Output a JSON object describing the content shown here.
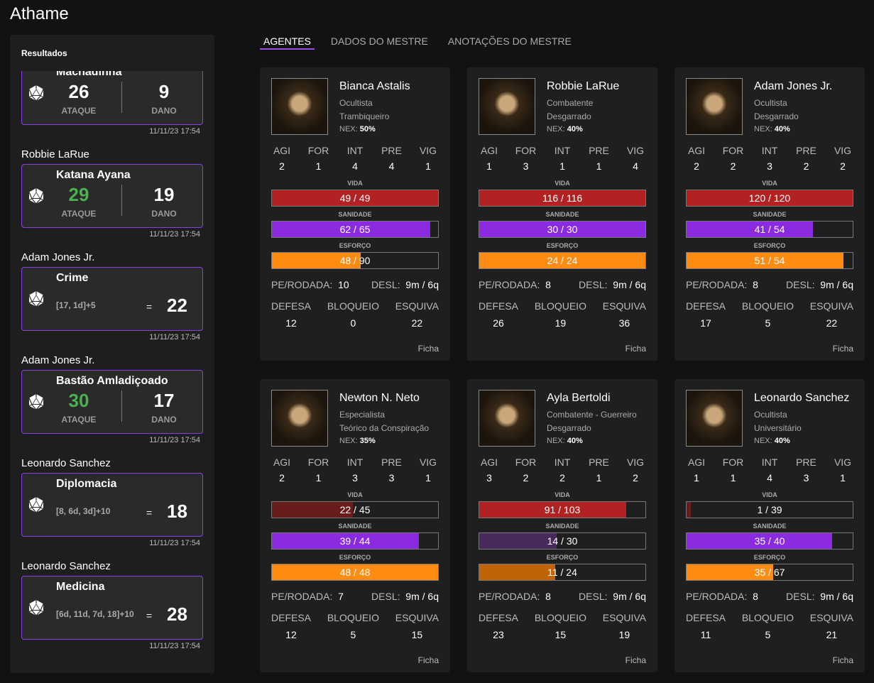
{
  "app": {
    "title": "Athame"
  },
  "sidebar": {
    "title": "Resultados",
    "results": [
      {
        "who": "",
        "type": "attack",
        "name": "Machadinha",
        "attack": "26",
        "attack_label": "ATAQUE",
        "damage": "9",
        "damage_label": "DANO",
        "crit": false,
        "time": "11/11/23 17:54"
      },
      {
        "who": "Robbie LaRue",
        "type": "attack",
        "name": "Katana Ayana",
        "attack": "29",
        "attack_label": "ATAQUE",
        "damage": "19",
        "damage_label": "DANO",
        "crit": true,
        "time": "11/11/23 17:54"
      },
      {
        "who": "Adam Jones Jr.",
        "type": "skill",
        "name": "Crime",
        "formula": "[17, 1d]+5",
        "eq": "=",
        "result": "22",
        "time": "11/11/23 17:54"
      },
      {
        "who": "Adam Jones Jr.",
        "type": "attack",
        "name": "Bastão Amladiçoado",
        "attack": "30",
        "attack_label": "ATAQUE",
        "damage": "17",
        "damage_label": "DANO",
        "crit": true,
        "time": "11/11/23 17:54"
      },
      {
        "who": "Leonardo Sanchez",
        "type": "skill",
        "name": "Diplomacia",
        "formula": "[8, 6d, 3d]+10",
        "eq": "=",
        "result": "18",
        "time": "11/11/23 17:54"
      },
      {
        "who": "Leonardo Sanchez",
        "type": "skill",
        "name": "Medicina",
        "formula": "[6d, 11d, 7d, 18]+10",
        "eq": "=",
        "result": "28",
        "time": "11/11/23 17:54"
      }
    ]
  },
  "tabs": [
    {
      "label": "AGENTES",
      "active": true
    },
    {
      "label": "DADOS DO MESTRE"
    },
    {
      "label": "ANOTAÇÕES DO MESTRE"
    }
  ],
  "labels": {
    "attrs": [
      "AGI",
      "FOR",
      "INT",
      "PRE",
      "VIG"
    ],
    "vida": "VIDA",
    "sanidade": "SANIDADE",
    "esforco": "ESFORÇO",
    "pe": "PE/RODADA:",
    "desl": "DESL:",
    "defesa": "DEFESA",
    "bloqueio": "BLOQUEIO",
    "esquiva": "ESQUIVA",
    "ficha": "Ficha",
    "nex": "NEX:"
  },
  "colors": {
    "vida": "#b22222",
    "vida_low": "#6a1c1c",
    "sanidade": "#8a2be2",
    "sanidade_low": "#48295c",
    "esforco": "#ff8c12",
    "esforco_low": "#c0640a",
    "accent": "#9b4de6",
    "crit": "#4caf50"
  },
  "agents": [
    {
      "name": "Bianca Astalis",
      "class": "Ocultista",
      "origin": "Trambiqueiro",
      "nex": "50%",
      "attrs": [
        2,
        1,
        4,
        4,
        1
      ],
      "vida": [
        49,
        49
      ],
      "sanidade": [
        62,
        65
      ],
      "esforco": [
        48,
        90
      ],
      "pe": "10",
      "desl": "9m / 6q",
      "defesa": "12",
      "bloqueio": "0",
      "esquiva": "22"
    },
    {
      "name": "Robbie LaRue",
      "class": "Combatente",
      "origin": "Desgarrado",
      "nex": "40%",
      "attrs": [
        1,
        3,
        1,
        1,
        4
      ],
      "vida": [
        116,
        116
      ],
      "sanidade": [
        30,
        30
      ],
      "esforco": [
        24,
        24
      ],
      "pe": "8",
      "desl": "9m / 6q",
      "defesa": "26",
      "bloqueio": "19",
      "esquiva": "36"
    },
    {
      "name": "Adam Jones Jr.",
      "class": "Ocultista",
      "origin": "Desgarrado",
      "nex": "40%",
      "attrs": [
        2,
        2,
        3,
        2,
        2
      ],
      "vida": [
        120,
        120
      ],
      "sanidade": [
        41,
        54
      ],
      "esforco": [
        51,
        54
      ],
      "pe": "8",
      "desl": "9m / 6q",
      "defesa": "17",
      "bloqueio": "5",
      "esquiva": "22"
    },
    {
      "name": "Newton N. Neto",
      "class": "Especialista",
      "origin": "Teórico da Conspiração",
      "nex": "35%",
      "attrs": [
        2,
        1,
        3,
        3,
        1
      ],
      "vida": [
        22,
        45
      ],
      "sanidade": [
        39,
        44
      ],
      "esforco": [
        48,
        48
      ],
      "pe": "7",
      "desl": "9m / 6q",
      "defesa": "12",
      "bloqueio": "5",
      "esquiva": "15"
    },
    {
      "name": "Ayla Bertoldi",
      "class": "Combatente - Guerreiro",
      "origin": "Desgarrado",
      "nex": "40%",
      "attrs": [
        3,
        2,
        2,
        1,
        2
      ],
      "vida": [
        91,
        103
      ],
      "sanidade": [
        14,
        30
      ],
      "esforco": [
        11,
        24
      ],
      "pe": "8",
      "desl": "9m / 6q",
      "defesa": "23",
      "bloqueio": "15",
      "esquiva": "19"
    },
    {
      "name": "Leonardo Sanchez",
      "class": "Ocultista",
      "origin": "Universitário",
      "nex": "40%",
      "attrs": [
        1,
        1,
        4,
        3,
        1
      ],
      "vida": [
        1,
        39
      ],
      "sanidade": [
        35,
        40
      ],
      "esforco": [
        35,
        67
      ],
      "pe": "8",
      "desl": "9m / 6q",
      "defesa": "11",
      "bloqueio": "5",
      "esquiva": "21"
    }
  ]
}
